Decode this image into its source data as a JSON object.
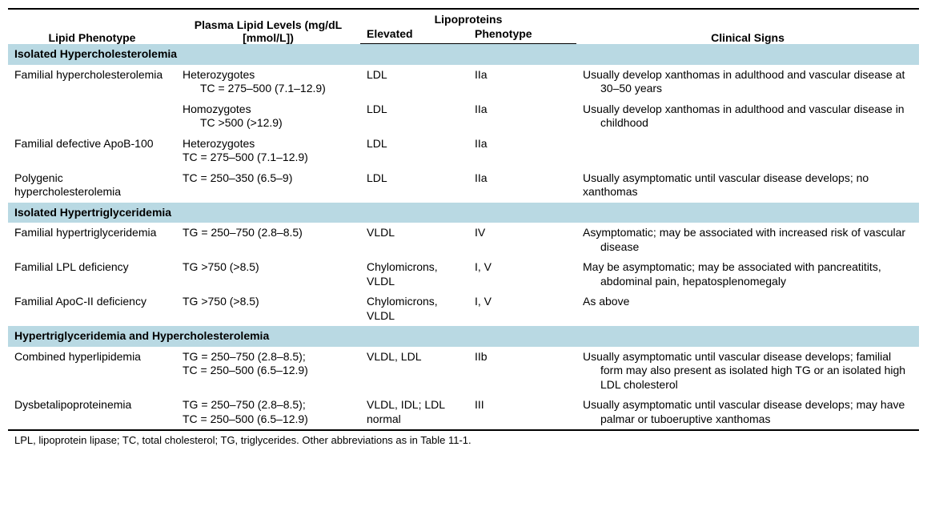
{
  "header": {
    "col_phenotype": "Lipid Phenotype",
    "col_plasma": "Plasma Lipid Levels (mg/dL [mmol/L])",
    "col_lipo_group": "Lipoproteins",
    "col_elevated": "Elevated",
    "col_lipo_phen": "Phenotype",
    "col_signs": "Clinical Signs"
  },
  "sections": {
    "s1": "Isolated Hypercholesterolemia",
    "s2": "Isolated Hypertriglyceridemia",
    "s3": "Hypertriglyceridemia and Hypercholesterolemia"
  },
  "rows": {
    "r1a": {
      "phen": "Familial hypercholesterolemia",
      "plasma_l1": "Heterozygotes",
      "plasma_l2": "TC = 275–500 (7.1–12.9)",
      "elev": "LDL",
      "lphen": "IIa",
      "signs": "Usually develop xanthomas in adulthood and vascular disease at 30–50 years"
    },
    "r1b": {
      "plasma_l1": "Homozygotes",
      "plasma_l2": "TC >500 (>12.9)",
      "elev": "LDL",
      "lphen": "IIa",
      "signs": "Usually develop xanthomas in adulthood and vascular disease in childhood"
    },
    "r2": {
      "phen": "Familial defective ApoB-100",
      "plasma_l1": "Heterozygotes",
      "plasma_l2": "TC = 275–500 (7.1–12.9)",
      "elev": "LDL",
      "lphen": "IIa",
      "signs": ""
    },
    "r3": {
      "phen": "Polygenic hypercholesterolemia",
      "plasma": "TC = 250–350 (6.5–9)",
      "elev": "LDL",
      "lphen": "IIa",
      "signs": "Usually asymptomatic until vascular disease develops; no xanthomas"
    },
    "r4": {
      "phen": "Familial hypertriglyceridemia",
      "plasma": "TG = 250–750 (2.8–8.5)",
      "elev": "VLDL",
      "lphen": "IV",
      "signs": "Asymptomatic; may be associated with increased risk of vascular disease"
    },
    "r5": {
      "phen": "Familial LPL deficiency",
      "plasma": "TG >750 (>8.5)",
      "elev": "Chylomicrons, VLDL",
      "lphen": "I, V",
      "signs": "May be asymptomatic; may be associated with pancreatitits, abdominal pain, hepatosplenomegaly"
    },
    "r6": {
      "phen": "Familial ApoC-II deficiency",
      "plasma": "TG >750 (>8.5)",
      "elev": "Chylomicrons, VLDL",
      "lphen": "I, V",
      "signs": "As above"
    },
    "r7": {
      "phen": "Combined hyperlipidemia",
      "plasma_l1": "TG = 250–750 (2.8–8.5);",
      "plasma_l2": "TC = 250–500 (6.5–12.9)",
      "elev": "VLDL, LDL",
      "lphen": "IIb",
      "signs": "Usually asymptomatic until vascular disease develops; familial form may also present as isolated high TG or an isolated high LDL cholesterol"
    },
    "r8": {
      "phen": "Dysbetalipoproteinemia",
      "plasma_l1": "TG = 250–750 (2.8–8.5);",
      "plasma_l2": "TC = 250–500 (6.5–12.9)",
      "elev": "VLDL, IDL; LDL normal",
      "lphen": "III",
      "signs": "Usually asymptomatic until vascular disease develops; may have palmar or tuboeruptive xanthomas"
    }
  },
  "footnote": "LPL, lipoprotein lipase; TC, total cholesterol; TG, triglycerides. Other abbreviations as in Table 11-1."
}
